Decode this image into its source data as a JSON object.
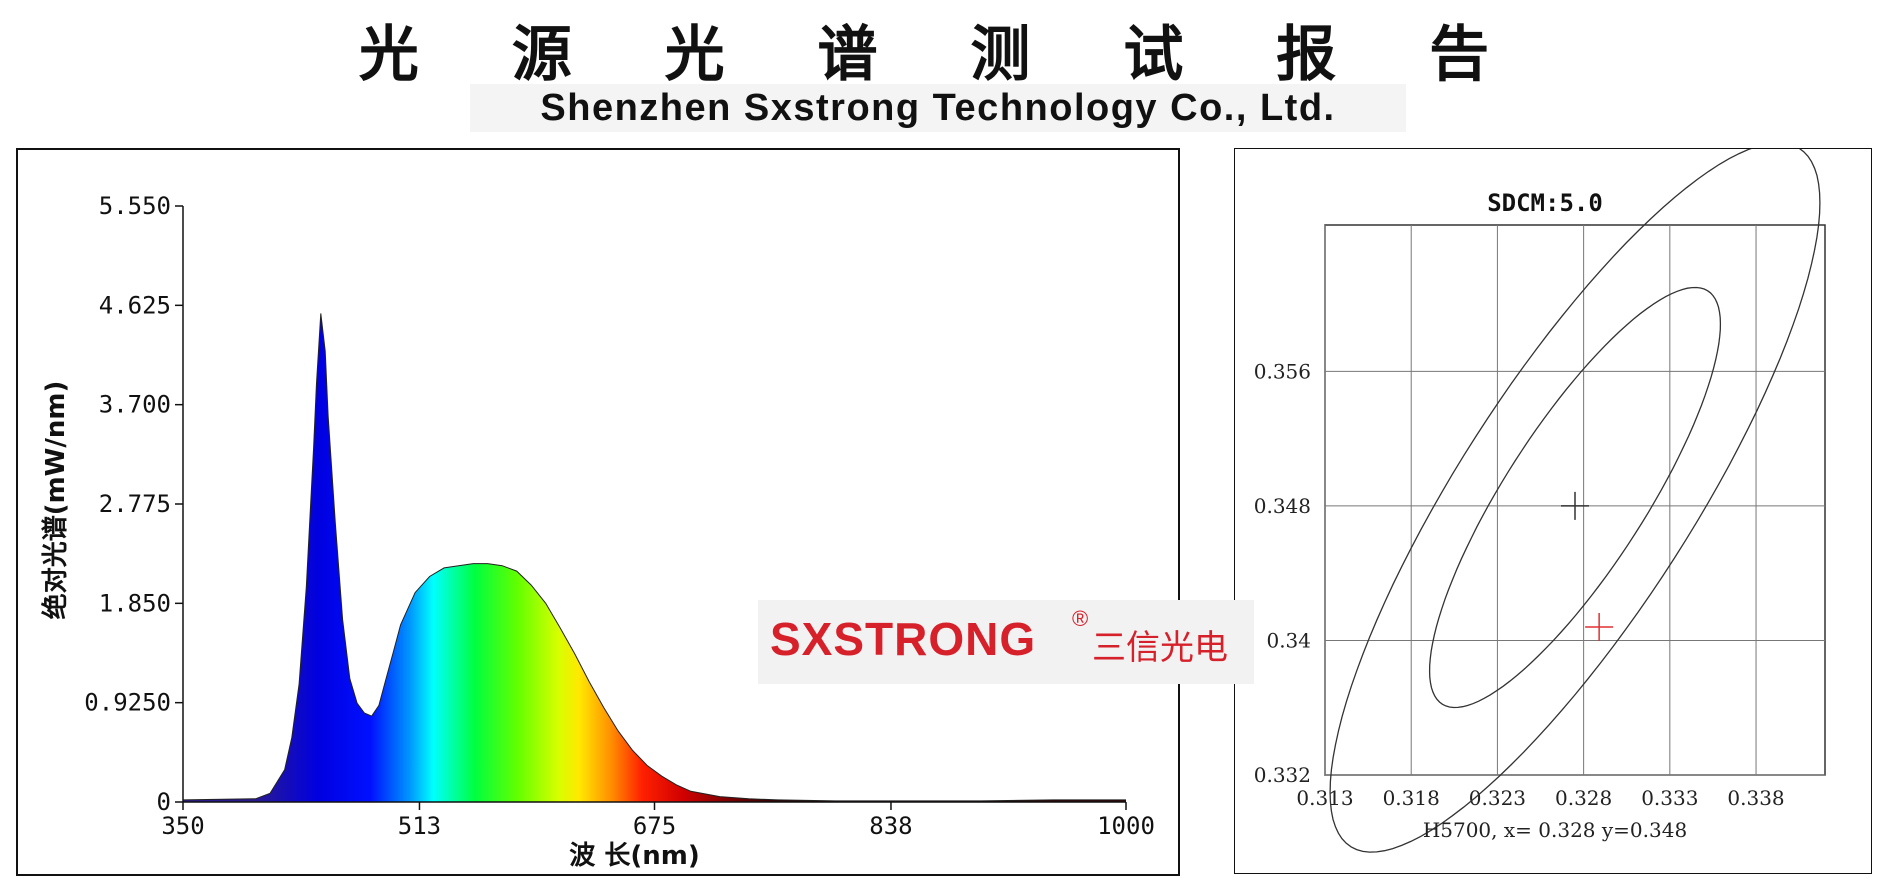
{
  "header": {
    "title_cn": "光 源 光 谱 测 试 报 告",
    "title_en": "Shenzhen Sxstrong Technology Co., Ltd."
  },
  "watermark": {
    "brand": "SXSTRONG",
    "reg": "®",
    "brand_cn": "三信光电",
    "color": "#d6202a"
  },
  "chart_data": [
    {
      "type": "area",
      "xlabel": "波 长(nm)",
      "ylabel": "绝对光谱(mW/nm)",
      "xlim": [
        350,
        1000
      ],
      "ylim": [
        0,
        5.55
      ],
      "x_ticks": [
        "350",
        "513",
        "675",
        "838",
        "1000"
      ],
      "x_tick_values": [
        350,
        513,
        675,
        838,
        1000
      ],
      "y_ticks": [
        "0",
        "0.9250",
        "1.850",
        "2.775",
        "3.700",
        "4.625",
        "5.550"
      ],
      "y_tick_values": [
        0,
        0.925,
        1.85,
        2.775,
        3.7,
        4.625,
        5.55
      ],
      "fill": "spectral gradient (blue-cyan-green-yellow-red-dark red)",
      "series": [
        {
          "x": [
            350,
            400,
            410,
            420,
            425,
            430,
            435,
            440,
            442,
            445,
            448,
            450,
            455,
            460,
            465,
            470,
            475,
            480,
            485,
            490,
            495,
            500,
            510,
            520,
            530,
            540,
            550,
            560,
            570,
            580,
            590,
            600,
            610,
            620,
            630,
            640,
            650,
            660,
            670,
            680,
            690,
            700,
            720,
            740,
            760,
            800,
            850,
            900,
            950,
            1000
          ],
          "y": [
            0.02,
            0.03,
            0.08,
            0.3,
            0.6,
            1.1,
            2.0,
            3.3,
            3.9,
            4.55,
            4.2,
            3.6,
            2.6,
            1.7,
            1.15,
            0.92,
            0.83,
            0.8,
            0.9,
            1.15,
            1.4,
            1.65,
            1.95,
            2.1,
            2.18,
            2.2,
            2.22,
            2.22,
            2.2,
            2.15,
            2.02,
            1.85,
            1.62,
            1.38,
            1.12,
            0.88,
            0.66,
            0.48,
            0.34,
            0.24,
            0.16,
            0.1,
            0.05,
            0.03,
            0.02,
            0.01,
            0.01,
            0.01,
            0.02,
            0.02
          ]
        }
      ]
    },
    {
      "type": "scatter",
      "title": "SDCM:5.0",
      "xlim": [
        0.313,
        0.342
      ],
      "ylim": [
        0.332,
        0.3647
      ],
      "x_ticks": [
        "0.313",
        "0.318",
        "0.323",
        "0.328",
        "0.333",
        "0.338"
      ],
      "x_tick_values": [
        0.313,
        0.318,
        0.323,
        0.328,
        0.333,
        0.338
      ],
      "y_ticks": [
        "0.332",
        "0.34",
        "0.348",
        "0.356"
      ],
      "y_tick_values": [
        0.332,
        0.34,
        0.348,
        0.356
      ],
      "grid": true,
      "ellipses": [
        {
          "name": "inner",
          "center": [
            0.3275,
            0.3485
          ],
          "semi_axes": [
            0.0145,
            0.0041
          ],
          "rotation_deg": 58
        },
        {
          "name": "outer",
          "center": [
            0.3275,
            0.3485
          ],
          "semi_axes": [
            0.0245,
            0.0068
          ],
          "rotation_deg": 58
        }
      ],
      "points": [
        {
          "name": "target",
          "x": 0.3275,
          "y": 0.348,
          "color": "#333333"
        },
        {
          "name": "measured",
          "x": 0.3289,
          "y": 0.3408,
          "color": "#e03030"
        }
      ],
      "caption": "H5700,  x= 0.328 y=0.348"
    }
  ]
}
